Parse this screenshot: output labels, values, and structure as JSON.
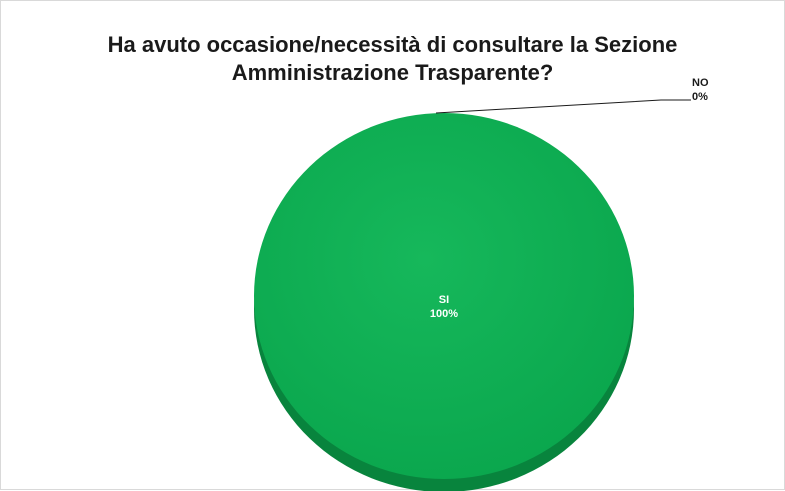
{
  "chart_data": {
    "type": "pie",
    "title_line1": "Ha avuto occasione/necessità di consultare la Sezione",
    "title_line2": "Amministrazione Trasparente?",
    "slices": [
      {
        "name": "SI",
        "value": 100,
        "label_pct": "100%",
        "color": "#0aaa50"
      },
      {
        "name": "NO",
        "value": 0,
        "label_pct": "0%",
        "color": "#c00000"
      }
    ],
    "colors": {
      "top": "#12b356",
      "side": "#08843d",
      "leader": "#1a1a1a"
    }
  }
}
